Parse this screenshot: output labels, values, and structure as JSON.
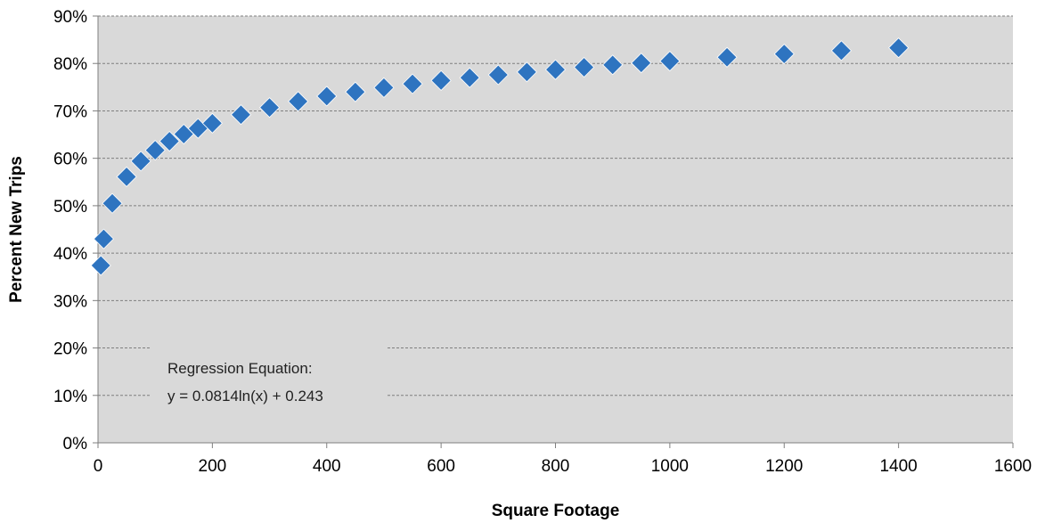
{
  "chart_data": {
    "type": "scatter",
    "xlabel": "Square Footage",
    "ylabel": "Percent New Trips",
    "xlim": [
      0,
      1600
    ],
    "ylim": [
      0,
      0.9
    ],
    "x_ticks": [
      0,
      200,
      400,
      600,
      800,
      1000,
      1200,
      1400,
      1600
    ],
    "x_tick_labels": [
      "0",
      "200",
      "400",
      "600",
      "800",
      "1000",
      "1200",
      "1400",
      "1600"
    ],
    "y_ticks": [
      0,
      0.1,
      0.2,
      0.3,
      0.4,
      0.5,
      0.6,
      0.7,
      0.8,
      0.9
    ],
    "y_tick_labels": [
      "0%",
      "10%",
      "20%",
      "30%",
      "40%",
      "50%",
      "60%",
      "70%",
      "80%",
      "90%"
    ],
    "grid": "horizontal dashed",
    "marker": "diamond",
    "colors": {
      "marker": "#2e74c0",
      "plot_background": "#d9d9d9",
      "gridline": "#7f7f7f"
    },
    "points": [
      {
        "x": 5,
        "y": 0.374
      },
      {
        "x": 10,
        "y": 0.43
      },
      {
        "x": 25,
        "y": 0.505
      },
      {
        "x": 50,
        "y": 0.561
      },
      {
        "x": 75,
        "y": 0.594
      },
      {
        "x": 100,
        "y": 0.617
      },
      {
        "x": 125,
        "y": 0.636
      },
      {
        "x": 150,
        "y": 0.651
      },
      {
        "x": 175,
        "y": 0.663
      },
      {
        "x": 200,
        "y": 0.674
      },
      {
        "x": 250,
        "y": 0.692
      },
      {
        "x": 300,
        "y": 0.707
      },
      {
        "x": 350,
        "y": 0.72
      },
      {
        "x": 400,
        "y": 0.731
      },
      {
        "x": 450,
        "y": 0.74
      },
      {
        "x": 500,
        "y": 0.749
      },
      {
        "x": 550,
        "y": 0.757
      },
      {
        "x": 600,
        "y": 0.764
      },
      {
        "x": 650,
        "y": 0.77
      },
      {
        "x": 700,
        "y": 0.776
      },
      {
        "x": 750,
        "y": 0.782
      },
      {
        "x": 800,
        "y": 0.787
      },
      {
        "x": 850,
        "y": 0.792
      },
      {
        "x": 900,
        "y": 0.797
      },
      {
        "x": 950,
        "y": 0.801
      },
      {
        "x": 1000,
        "y": 0.805
      },
      {
        "x": 1100,
        "y": 0.813
      },
      {
        "x": 1200,
        "y": 0.82
      },
      {
        "x": 1300,
        "y": 0.827
      },
      {
        "x": 1400,
        "y": 0.833
      }
    ],
    "annotation": {
      "line1": "Regression Equation:",
      "line2": "y = 0.0814ln(x) + 0.243"
    }
  }
}
